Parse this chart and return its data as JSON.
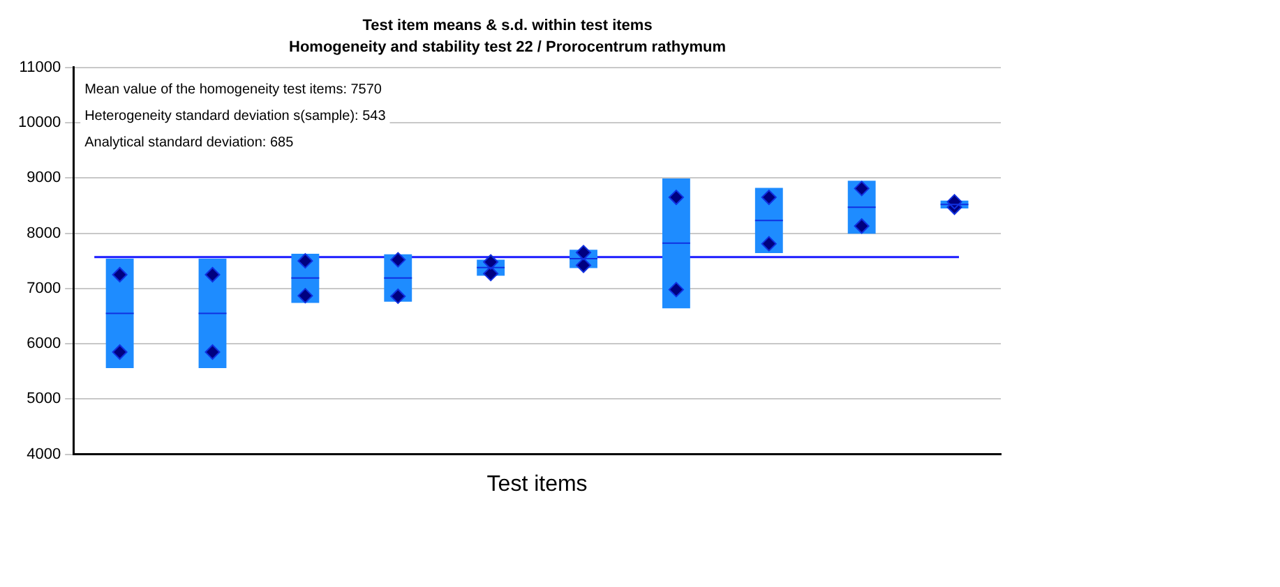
{
  "chart_data": {
    "type": "box",
    "title": "Test item means & s.d. within test items",
    "subtitle": "Homogeneity and stability test 22 / Prorocentrum rathymum",
    "xlabel": "Test items",
    "categories": [
      null,
      null,
      null,
      null,
      null,
      null,
      null,
      null,
      null,
      null
    ],
    "color": "#1e8cff",
    "boxes": [
      {
        "low": 5560,
        "q1": 5560,
        "median": 6550,
        "q3": 7540,
        "high": 7540
      },
      {
        "low": 5560,
        "q1": 5560,
        "median": 6550,
        "q3": 7540,
        "high": 7540
      },
      {
        "low": 6740,
        "q1": 6740,
        "median": 7190,
        "q3": 7630,
        "high": 7630
      },
      {
        "low": 6760,
        "q1": 6760,
        "median": 7190,
        "q3": 7620,
        "high": 7620
      },
      {
        "low": 7230,
        "q1": 7230,
        "median": 7380,
        "q3": 7520,
        "high": 7520
      },
      {
        "low": 7370,
        "q1": 7370,
        "median": 7540,
        "q3": 7700,
        "high": 7700
      },
      {
        "low": 6640,
        "q1": 6640,
        "median": 7820,
        "q3": 8990,
        "high": 8990
      },
      {
        "low": 7640,
        "q1": 7640,
        "median": 8230,
        "q3": 8820,
        "high": 8820
      },
      {
        "low": 7990,
        "q1": 7990,
        "median": 8470,
        "q3": 8950,
        "high": 8950
      },
      {
        "low": 8450,
        "q1": 8450,
        "median": 8520,
        "q3": 8590,
        "high": 8590
      }
    ],
    "series": [
      {
        "type": "scatter",
        "color": "#000080",
        "marker": "diamond",
        "values": [
          7250,
          7250,
          7500,
          7520,
          7480,
          7650,
          8650,
          8650,
          8810,
          8570
        ]
      },
      {
        "type": "scatter",
        "color": "#000080",
        "marker": "diamond",
        "values": [
          5850,
          5850,
          6870,
          6860,
          7270,
          7420,
          6980,
          7810,
          8130,
          8470
        ]
      }
    ],
    "ylim": [
      4000,
      11000
    ],
    "yticks": [
      4000,
      5000,
      6000,
      7000,
      8000,
      9000,
      10000,
      11000
    ],
    "ref_lines": [
      {
        "axis": "y",
        "value": 7570,
        "color": "#1a1aff"
      }
    ],
    "annotations": [
      "Mean value of the homogeneity test items: 7570",
      "Heterogeneity standard deviation s(sample): 543",
      "Analytical standard deviation: 685"
    ],
    "grid": "y",
    "legend": false,
    "tick_labels": "y"
  }
}
